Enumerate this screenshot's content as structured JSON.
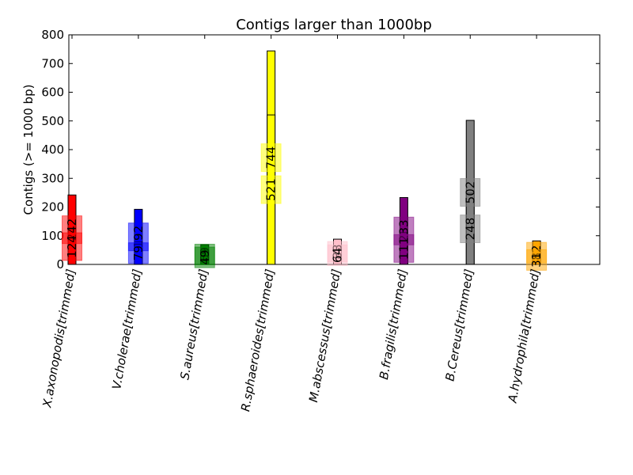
{
  "chart_data": {
    "type": "bar",
    "title": "Contigs larger than 1000bp",
    "xlabel": "",
    "ylabel": "Contigs (>= 1000 bp)",
    "ylim": [
      0,
      800
    ],
    "yticks": [
      0,
      100,
      200,
      300,
      400,
      500,
      600,
      700,
      800
    ],
    "grid": false,
    "categories": [
      "X.axonopodis[trimmed]",
      "V.cholerae[trimmed]",
      "S.aureus[trimmed]",
      "R.sphaeroides[trimmed]",
      "M.abscessus[trimmed]",
      "B.fragilis[trimmed]",
      "B.Cereus[trimmed]",
      "A.hydrophila[trimmed]"
    ],
    "colors": [
      "#ff0000",
      "#0000ff",
      "#008000",
      "#ffff00",
      "#ffc0cb",
      "#800080",
      "#808080",
      "#ffa500"
    ],
    "series": [
      {
        "values": [
          242,
          192,
          69,
          744,
          88,
          233,
          502,
          82
        ]
      },
      {
        "values": [
          124,
          79,
          49,
          521,
          64,
          111,
          248,
          31
        ]
      }
    ],
    "value_labels": [
      [
        "242",
        "124"
      ],
      [
        "192",
        "79"
      ],
      [
        "69",
        "49"
      ],
      [
        "744",
        "521"
      ],
      [
        "88",
        "64"
      ],
      [
        "233",
        "111"
      ],
      [
        "502",
        "248"
      ],
      [
        "82",
        "31"
      ]
    ]
  }
}
